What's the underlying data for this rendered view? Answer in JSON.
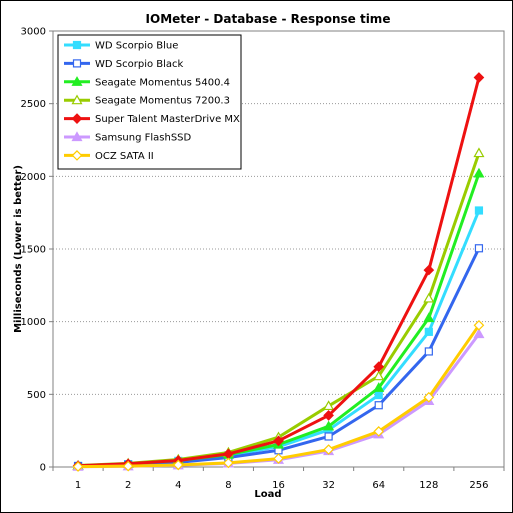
{
  "chart_data": {
    "type": "line",
    "title": "IOMeter - Database - Response time",
    "xlabel": "Load",
    "ylabel": "Milliseconds (Lower is better)",
    "categories": [
      "1",
      "2",
      "4",
      "8",
      "16",
      "32",
      "64",
      "128",
      "256"
    ],
    "ylim": [
      0,
      3000
    ],
    "yticks": [
      0,
      500,
      1000,
      1500,
      2000,
      2500,
      3000
    ],
    "grid": true,
    "legend_position": "top-left",
    "series": [
      {
        "name": "WD Scorpio Blue",
        "color": "#33ddff",
        "marker": "square-filled",
        "values": [
          8,
          20,
          42,
          80,
          140,
          255,
          495,
          930,
          1765
        ]
      },
      {
        "name": "WD Scorpio Black",
        "color": "#3366ee",
        "marker": "square-open",
        "values": [
          6,
          15,
          32,
          65,
          115,
          210,
          425,
          795,
          1505
        ]
      },
      {
        "name": "Seagate Momentus 5400.4",
        "color": "#22ee22",
        "marker": "triangle-filled",
        "values": [
          9,
          22,
          45,
          85,
          155,
          280,
          545,
          1025,
          2020
        ]
      },
      {
        "name": "Seagate Momentus 7200.3",
        "color": "#99cc00",
        "marker": "triangle-open",
        "values": [
          10,
          25,
          52,
          100,
          205,
          420,
          625,
          1160,
          2160
        ]
      },
      {
        "name": "Super Talent MasterDrive MX",
        "color": "#ee1111",
        "marker": "diamond-filled",
        "values": [
          9,
          22,
          45,
          90,
          180,
          355,
          690,
          1355,
          2680
        ]
      },
      {
        "name": "Samsung FlashSSD",
        "color": "#cc99ff",
        "marker": "triangle-filled",
        "values": [
          2,
          5,
          12,
          25,
          50,
          110,
          225,
          455,
          915
        ]
      },
      {
        "name": "OCZ SATA II",
        "color": "#ffcc00",
        "marker": "diamond-open",
        "values": [
          3,
          6,
          14,
          28,
          58,
          120,
          245,
          480,
          975
        ]
      }
    ]
  }
}
